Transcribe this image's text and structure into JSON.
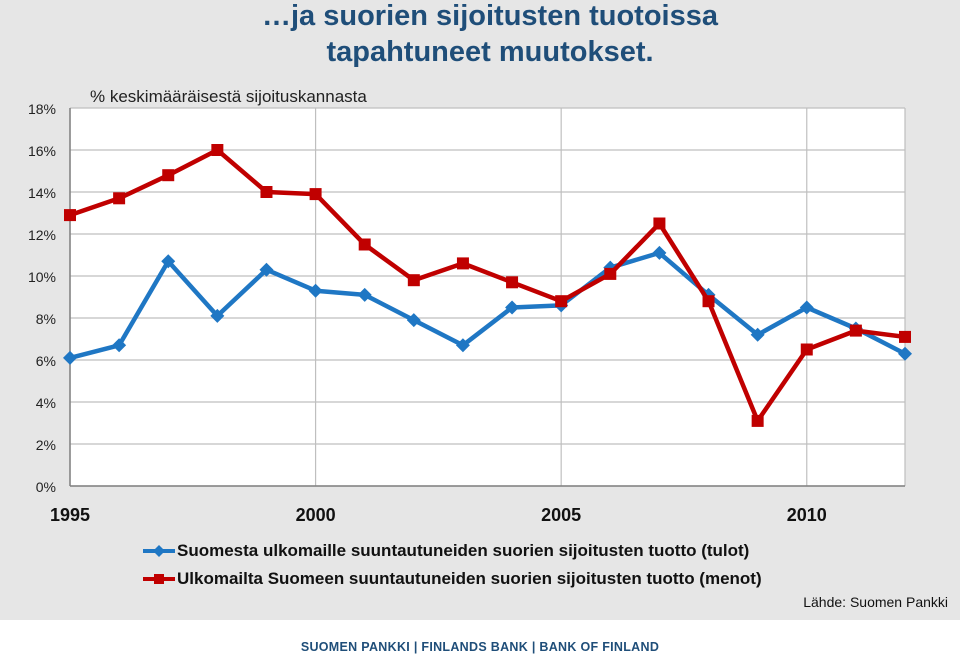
{
  "title": "…ja suorien sijoitusten tuotoissa tapahtuneet muutokset.",
  "source": "Lähde: Suomen Pankki",
  "footer": "SUOMEN PANKKI | FINLANDS BANK | BANK OF FINLAND",
  "chart_data": {
    "type": "line",
    "ylabel": "% keskimääräisestä sijoituskannasta",
    "ylim": [
      0,
      18
    ],
    "y_ticks": [
      "0%",
      "2%",
      "4%",
      "6%",
      "8%",
      "10%",
      "12%",
      "14%",
      "16%",
      "18%"
    ],
    "x_ticks": [
      "1995",
      "2000",
      "2005",
      "2010"
    ],
    "x": [
      1995,
      1996,
      1997,
      1998,
      1999,
      2000,
      2001,
      2002,
      2003,
      2004,
      2005,
      2006,
      2007,
      2008,
      2009,
      2010,
      2011,
      2012
    ],
    "grid": true,
    "legend_position": "bottom",
    "series": [
      {
        "name": "Suomesta ulkomaille suuntautuneiden suorien sijoitusten tuotto (tulot)",
        "color": "#1f77c4",
        "marker": "diamond",
        "values": [
          6.1,
          6.7,
          10.7,
          8.1,
          10.3,
          9.3,
          9.1,
          7.9,
          6.7,
          8.5,
          8.6,
          10.4,
          11.1,
          9.1,
          7.2,
          8.5,
          7.5,
          6.3
        ]
      },
      {
        "name": "Ulkomailta Suomeen suuntautuneiden suorien sijoitusten tuotto (menot)",
        "color": "#c00000",
        "marker": "square",
        "values": [
          12.9,
          13.7,
          14.8,
          16.0,
          14.0,
          13.9,
          11.5,
          9.8,
          10.6,
          9.7,
          8.8,
          10.1,
          12.5,
          8.8,
          3.1,
          6.5,
          7.4,
          7.1
        ]
      }
    ]
  }
}
